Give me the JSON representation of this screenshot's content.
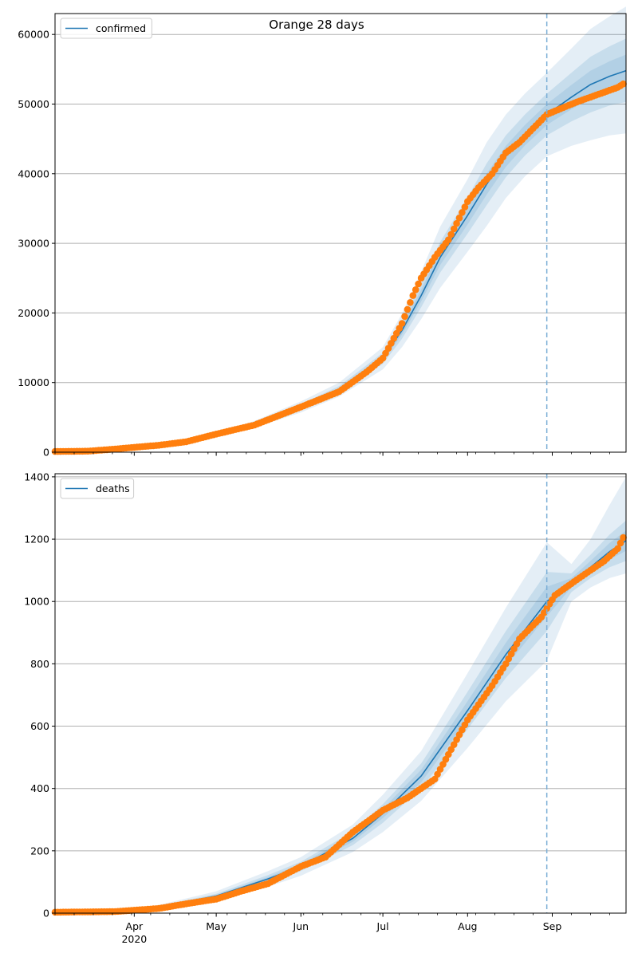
{
  "figure": {
    "title": "Orange 28 days",
    "x_tick_labels": [
      "Apr\n2020",
      "May",
      "Jun",
      "Jul",
      "Aug",
      "Sep"
    ]
  },
  "colors": {
    "model_line": "#1f77b4",
    "observed_points": "#ff7f0e",
    "band": "#1f77b4",
    "grid": "#b0b0b0",
    "forecast_marker": "#7aaed6"
  },
  "chart_data": [
    {
      "type": "line",
      "title": "Orange 28 days",
      "xlabel": "",
      "ylabel": "",
      "x_range": [
        "2020-03-03",
        "2020-09-28"
      ],
      "ylim": [
        0,
        63000
      ],
      "y_ticks": [
        0,
        10000,
        20000,
        30000,
        40000,
        50000,
        60000
      ],
      "x_ticks": [
        {
          "date": "2020-04-01",
          "label": "Apr\n2020"
        },
        {
          "date": "2020-05-01",
          "label": "May"
        },
        {
          "date": "2020-06-01",
          "label": "Jun"
        },
        {
          "date": "2020-07-01",
          "label": "Jul"
        },
        {
          "date": "2020-08-01",
          "label": "Aug"
        },
        {
          "date": "2020-09-01",
          "label": "Sep"
        }
      ],
      "grid": "horizontal",
      "legend": {
        "position": "top-left",
        "entries": [
          "confirmed"
        ]
      },
      "forecast_start": "2020-08-30",
      "series": [
        {
          "name": "confirmed",
          "kind": "model",
          "x": [
            "2020-03-03",
            "2020-03-15",
            "2020-04-01",
            "2020-04-15",
            "2020-05-01",
            "2020-05-15",
            "2020-06-01",
            "2020-06-15",
            "2020-07-01",
            "2020-07-08",
            "2020-07-15",
            "2020-07-22",
            "2020-08-01",
            "2020-08-08",
            "2020-08-15",
            "2020-08-22",
            "2020-08-30",
            "2020-09-08",
            "2020-09-15",
            "2020-09-22",
            "2020-09-28"
          ],
          "values": [
            0,
            150,
            700,
            1400,
            2500,
            4000,
            6500,
            9000,
            13500,
            17500,
            22500,
            28000,
            34000,
            38500,
            42500,
            45500,
            48500,
            51000,
            52800,
            54000,
            54800
          ],
          "band_1_lower": [
            0,
            130,
            640,
            1300,
            2350,
            3750,
            6100,
            8500,
            12700,
            16300,
            20800,
            25800,
            31400,
            35500,
            39500,
            42600,
            45500,
            47500,
            48800,
            49800,
            50300
          ],
          "band_1_upper": [
            0,
            170,
            760,
            1500,
            2650,
            4250,
            6900,
            9500,
            14300,
            18700,
            24200,
            30200,
            36600,
            41500,
            45500,
            48500,
            51500,
            54500,
            56800,
            58300,
            59400
          ],
          "band_2_lower": [
            0,
            110,
            580,
            1200,
            2200,
            3500,
            5700,
            8000,
            11900,
            15100,
            19100,
            23600,
            28800,
            32500,
            36500,
            39600,
            42500,
            44000,
            44800,
            45500,
            45800
          ],
          "band_2_upper": [
            0,
            190,
            820,
            1600,
            2800,
            4500,
            7300,
            10000,
            15100,
            19900,
            25900,
            32400,
            39200,
            44500,
            48500,
            51500,
            54500,
            58000,
            60800,
            62600,
            64000
          ]
        },
        {
          "name": "confirmed observed",
          "kind": "observed",
          "x": [
            "2020-03-03",
            "2020-03-15",
            "2020-03-25",
            "2020-04-01",
            "2020-04-10",
            "2020-04-20",
            "2020-05-01",
            "2020-05-15",
            "2020-06-01",
            "2020-06-15",
            "2020-06-25",
            "2020-07-01",
            "2020-07-08",
            "2020-07-12",
            "2020-07-15",
            "2020-07-20",
            "2020-07-25",
            "2020-08-01",
            "2020-08-05",
            "2020-08-10",
            "2020-08-15",
            "2020-08-20",
            "2020-08-25",
            "2020-08-30",
            "2020-09-05",
            "2020-09-10",
            "2020-09-15",
            "2020-09-20",
            "2020-09-25",
            "2020-09-27"
          ],
          "values": [
            100,
            150,
            450,
            700,
            1000,
            1500,
            2600,
            3900,
            6500,
            8700,
            11500,
            13500,
            18500,
            22500,
            25000,
            28000,
            30500,
            36000,
            38000,
            40000,
            43000,
            44500,
            46500,
            48500,
            49500,
            50300,
            51000,
            51700,
            52400,
            52900
          ]
        }
      ]
    },
    {
      "type": "line",
      "title": "",
      "xlabel": "",
      "ylabel": "",
      "x_range": [
        "2020-03-03",
        "2020-09-28"
      ],
      "ylim": [
        0,
        1410
      ],
      "y_ticks": [
        0,
        200,
        400,
        600,
        800,
        1000,
        1200,
        1400
      ],
      "x_ticks": [
        {
          "date": "2020-04-01",
          "label": "Apr\n2020"
        },
        {
          "date": "2020-05-01",
          "label": "May"
        },
        {
          "date": "2020-06-01",
          "label": "Jun"
        },
        {
          "date": "2020-07-01",
          "label": "Jul"
        },
        {
          "date": "2020-08-01",
          "label": "Aug"
        },
        {
          "date": "2020-09-01",
          "label": "Sep"
        }
      ],
      "grid": "horizontal",
      "legend": {
        "position": "top-left",
        "entries": [
          "deaths"
        ]
      },
      "forecast_start": "2020-08-30",
      "series": [
        {
          "name": "deaths",
          "kind": "model",
          "x": [
            "2020-03-03",
            "2020-03-25",
            "2020-04-10",
            "2020-05-01",
            "2020-05-20",
            "2020-06-01",
            "2020-06-20",
            "2020-07-01",
            "2020-07-15",
            "2020-08-01",
            "2020-08-15",
            "2020-08-30",
            "2020-09-08",
            "2020-09-15",
            "2020-09-22",
            "2020-09-28"
          ],
          "values": [
            0,
            5,
            20,
            55,
            110,
            150,
            240,
            320,
            440,
            650,
            830,
            1000,
            1060,
            1110,
            1160,
            1195
          ],
          "band_1_lower": [
            0,
            4,
            17,
            48,
            98,
            135,
            218,
            290,
            400,
            590,
            755,
            905,
            1030,
            1075,
            1110,
            1130
          ],
          "band_1_upper": [
            0,
            6,
            23,
            62,
            122,
            165,
            262,
            350,
            480,
            710,
            905,
            1095,
            1090,
            1150,
            1215,
            1260
          ],
          "band_2_lower": [
            0,
            3,
            14,
            40,
            85,
            120,
            196,
            260,
            360,
            530,
            680,
            810,
            1000,
            1045,
            1075,
            1090
          ],
          "band_2_upper": [
            0,
            7,
            26,
            70,
            135,
            180,
            284,
            380,
            520,
            770,
            980,
            1190,
            1120,
            1200,
            1310,
            1400
          ]
        },
        {
          "name": "deaths observed",
          "kind": "observed",
          "x": [
            "2020-03-03",
            "2020-03-25",
            "2020-04-10",
            "2020-04-20",
            "2020-05-01",
            "2020-05-10",
            "2020-05-20",
            "2020-06-01",
            "2020-06-10",
            "2020-06-20",
            "2020-07-01",
            "2020-07-10",
            "2020-07-20",
            "2020-08-01",
            "2020-08-10",
            "2020-08-15",
            "2020-08-20",
            "2020-08-28",
            "2020-09-02",
            "2020-09-10",
            "2020-09-15",
            "2020-09-20",
            "2020-09-25",
            "2020-09-27"
          ],
          "values": [
            3,
            5,
            15,
            30,
            45,
            70,
            95,
            150,
            180,
            260,
            330,
            370,
            430,
            620,
            730,
            800,
            880,
            950,
            1020,
            1070,
            1100,
            1130,
            1170,
            1205
          ]
        }
      ]
    }
  ]
}
